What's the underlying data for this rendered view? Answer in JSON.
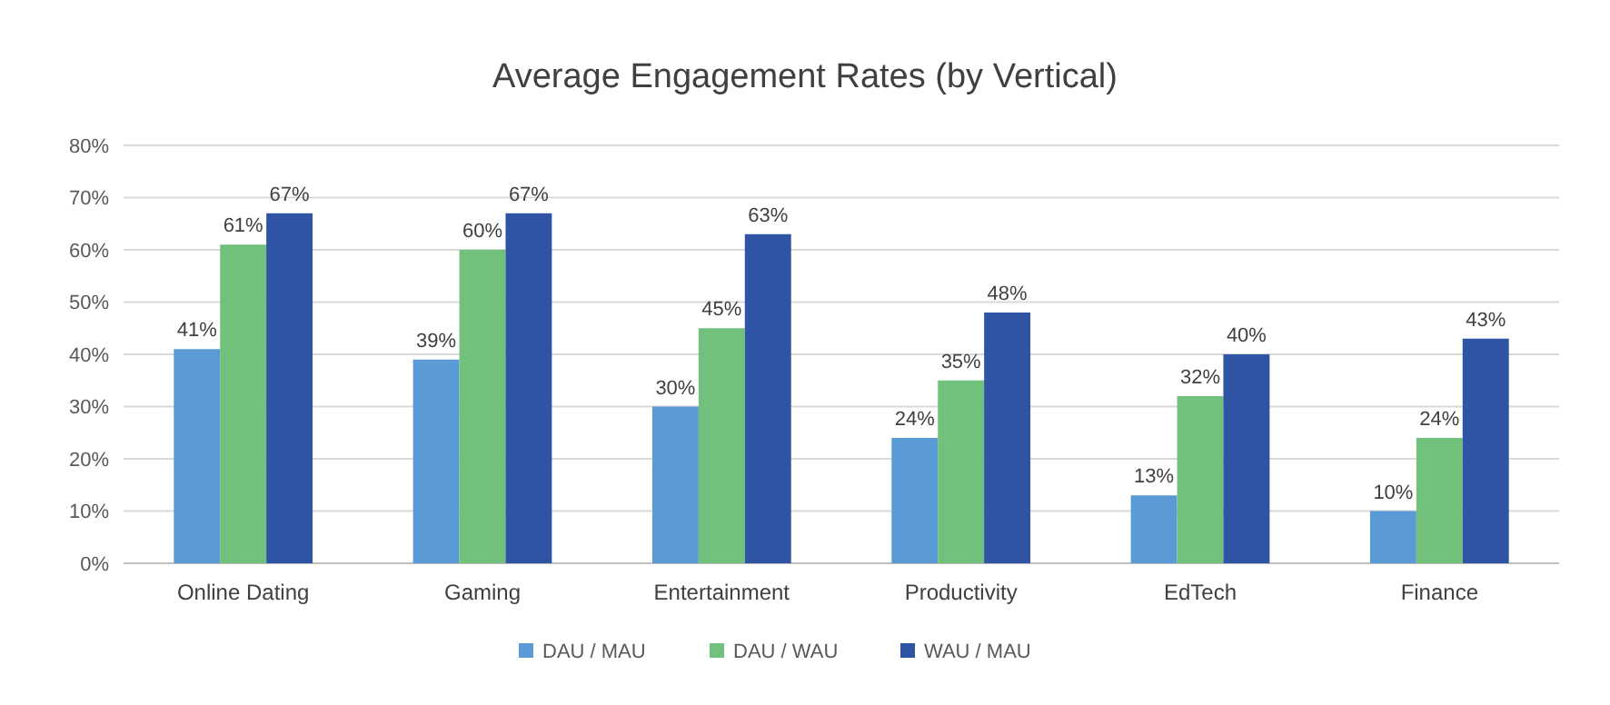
{
  "chart_data": {
    "type": "bar",
    "title": "Average Engagement Rates  (by Vertical)",
    "categories": [
      "Online Dating",
      "Gaming",
      "Entertainment",
      "Productivity",
      "EdTech",
      "Finance"
    ],
    "series": [
      {
        "name": "DAU / MAU",
        "color": "#5b9bd5",
        "values": [
          41,
          39,
          30,
          24,
          13,
          10
        ],
        "value_labels": [
          "41%",
          "39%",
          "30%",
          "24%",
          "13%",
          "10%"
        ]
      },
      {
        "name": "DAU / WAU",
        "color": "#71c17c",
        "values": [
          61,
          60,
          45,
          35,
          32,
          24
        ],
        "value_labels": [
          "61%",
          "60%",
          "45%",
          "35%",
          "32%",
          "24%"
        ]
      },
      {
        "name": "WAU / MAU",
        "color": "#2e54a3",
        "values": [
          67,
          67,
          63,
          48,
          40,
          43
        ],
        "value_labels": [
          "67%",
          "67%",
          "63%",
          "48%",
          "40%",
          "43%"
        ]
      }
    ],
    "ylim": [
      0,
      80
    ],
    "yticks": [
      {
        "value": 0,
        "label": "0%"
      },
      {
        "value": 10,
        "label": "10%"
      },
      {
        "value": 20,
        "label": "20%"
      },
      {
        "value": 30,
        "label": "30%"
      },
      {
        "value": 40,
        "label": "40%"
      },
      {
        "value": 50,
        "label": "50%"
      },
      {
        "value": 60,
        "label": "60%"
      },
      {
        "value": 70,
        "label": "70%"
      },
      {
        "value": 80,
        "label": "80%"
      }
    ],
    "grid": "y",
    "legend": "bottom"
  }
}
